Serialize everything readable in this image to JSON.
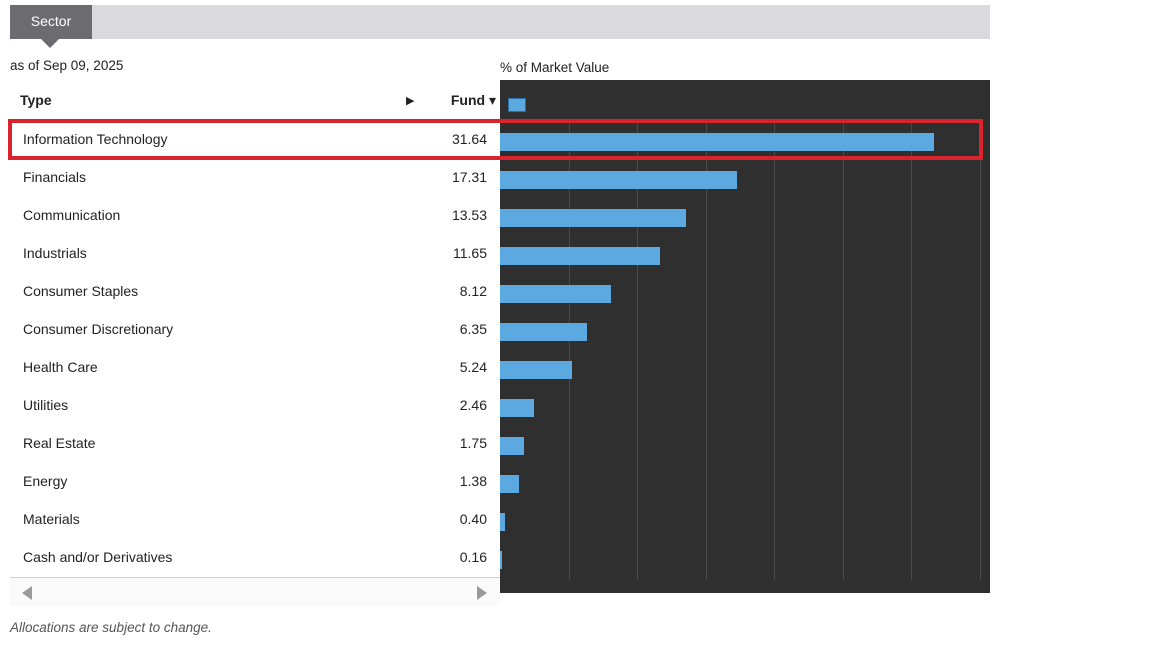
{
  "tab": {
    "label": "Sector"
  },
  "as_of": "as of Sep 09, 2025",
  "chart_label": "% of Market Value",
  "table": {
    "header_type": "Type",
    "header_arrow": "▶",
    "header_fund": "Fund ▾"
  },
  "footnote": "Allocations are subject to change.",
  "colors": {
    "bar": "#5ba9e0",
    "chart_bg": "#2f2f2f",
    "highlight": "#d9232d",
    "tab": "#6b6b70"
  },
  "chart_data": {
    "type": "bar",
    "orientation": "horizontal",
    "title": "% of Market Value",
    "xlabel": "",
    "ylabel": "",
    "xlim": [
      0,
      35
    ],
    "grid": true,
    "highlighted_category": "Information Technology",
    "categories": [
      "Information Technology",
      "Financials",
      "Communication",
      "Industrials",
      "Consumer Staples",
      "Consumer Discretionary",
      "Health Care",
      "Utilities",
      "Real Estate",
      "Energy",
      "Materials",
      "Cash and/or Derivatives"
    ],
    "values": [
      31.64,
      17.31,
      13.53,
      11.65,
      8.12,
      6.35,
      5.24,
      2.46,
      1.75,
      1.38,
      0.4,
      0.16
    ],
    "value_labels": [
      "31.64",
      "17.31",
      "13.53",
      "11.65",
      "8.12",
      "6.35",
      "5.24",
      "2.46",
      "1.75",
      "1.38",
      "0.40",
      "0.16"
    ]
  }
}
